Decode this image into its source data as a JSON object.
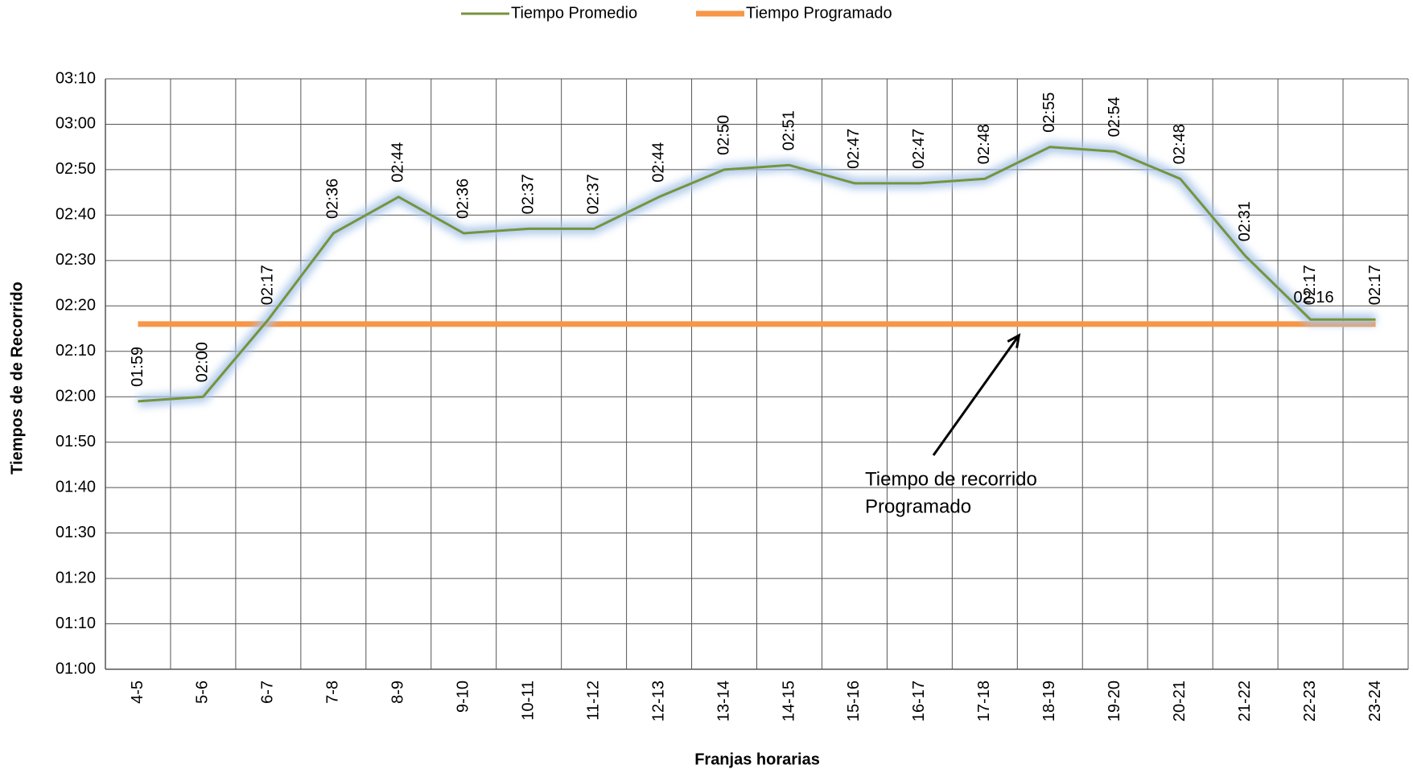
{
  "chart_data": {
    "type": "line",
    "x_label": "Franjas horarias",
    "y_label": "Tiempos de de Recorrido",
    "categories": [
      "4-5",
      "5-6",
      "6-7",
      "7-8",
      "8-9",
      "9-10",
      "10-11",
      "11-12",
      "12-13",
      "13-14",
      "14-15",
      "15-16",
      "16-17",
      "17-18",
      "18-19",
      "19-20",
      "20-21",
      "21-22",
      "22-23",
      "23-24"
    ],
    "series": [
      {
        "name": "Tiempo Promedio",
        "color": "#77933c",
        "values": [
          119,
          120,
          137,
          156,
          164,
          156,
          157,
          157,
          164,
          170,
          171,
          167,
          167,
          168,
          175,
          174,
          168,
          151,
          137,
          137
        ],
        "value_labels": [
          "01:59",
          "02:00",
          "02:17",
          "02:36",
          "02:44",
          "02:36",
          "02:37",
          "02:37",
          "02:44",
          "02:50",
          "02:51",
          "02:47",
          "02:47",
          "02:48",
          "02:55",
          "02:54",
          "02:48",
          "02:31",
          "02:17",
          "02:17"
        ]
      },
      {
        "name": "Tiempo Programado",
        "color": "#f79646",
        "values": [
          136,
          136,
          136,
          136,
          136,
          136,
          136,
          136,
          136,
          136,
          136,
          136,
          136,
          136,
          136,
          136,
          136,
          136,
          136,
          136
        ],
        "value_labels": [
          null,
          null,
          null,
          null,
          null,
          null,
          null,
          null,
          null,
          null,
          null,
          null,
          null,
          null,
          null,
          null,
          null,
          null,
          "02:16",
          null
        ]
      }
    ],
    "ylim": [
      60,
      190
    ],
    "yticks": [
      {
        "value": 60,
        "label": "01:00"
      },
      {
        "value": 70,
        "label": "01:10"
      },
      {
        "value": 80,
        "label": "01:20"
      },
      {
        "value": 90,
        "label": "01:30"
      },
      {
        "value": 100,
        "label": "01:40"
      },
      {
        "value": 110,
        "label": "01:50"
      },
      {
        "value": 120,
        "label": "02:00"
      },
      {
        "value": 130,
        "label": "02:10"
      },
      {
        "value": 140,
        "label": "02:20"
      },
      {
        "value": 150,
        "label": "02:30"
      },
      {
        "value": 160,
        "label": "02:40"
      },
      {
        "value": 170,
        "label": "02:50"
      },
      {
        "value": 180,
        "label": "03:00"
      },
      {
        "value": 190,
        "label": "03:10"
      }
    ],
    "grid": true,
    "legend": "top",
    "annotation": {
      "text": [
        "Tiempo de recorrido",
        "Programado"
      ]
    }
  }
}
